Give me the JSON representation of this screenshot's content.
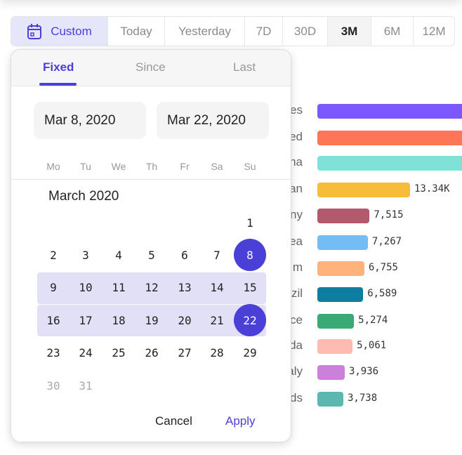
{
  "range_buttons": {
    "custom": "Custom",
    "options": [
      "Today",
      "Yesterday",
      "7D",
      "30D",
      "3M",
      "6M",
      "12M"
    ],
    "active": "3M"
  },
  "popover": {
    "tabs": [
      "Fixed",
      "Since",
      "Last"
    ],
    "active_tab": "Fixed",
    "start_date": "Mar 8, 2020",
    "end_date": "Mar 22, 2020",
    "weekdays": [
      "Mo",
      "Tu",
      "We",
      "Th",
      "Fr",
      "Sa",
      "Su"
    ],
    "month_title": "March 2020",
    "selected_start": 8,
    "selected_end": 22,
    "cancel": "Cancel",
    "apply": "Apply"
  },
  "colors": {
    "accent": "#4a3fd6"
  },
  "chart_data": {
    "type": "bar",
    "orientation": "horizontal",
    "categories": [
      "es",
      "ed",
      "na",
      "an",
      "ny",
      "ea",
      "m",
      "zil",
      "ce",
      "da",
      "aly",
      "ds"
    ],
    "values": [
      null,
      null,
      null,
      13340,
      7515,
      7267,
      6755,
      6589,
      5274,
      5061,
      3936,
      3738
    ],
    "value_labels": [
      "",
      "",
      "",
      "13.34K",
      "7,515",
      "7,267",
      "6,755",
      "6,589",
      "5,274",
      "5,061",
      "3,936",
      "3,738"
    ],
    "colors": [
      "#7b57fd",
      "#ff7557",
      "#80e1d9",
      "#f8bc3b",
      "#b2596e",
      "#72bef4",
      "#ffb27a",
      "#0d7ea0",
      "#3ba974",
      "#febbb2",
      "#cb80dc",
      "#5cb7af"
    ]
  }
}
